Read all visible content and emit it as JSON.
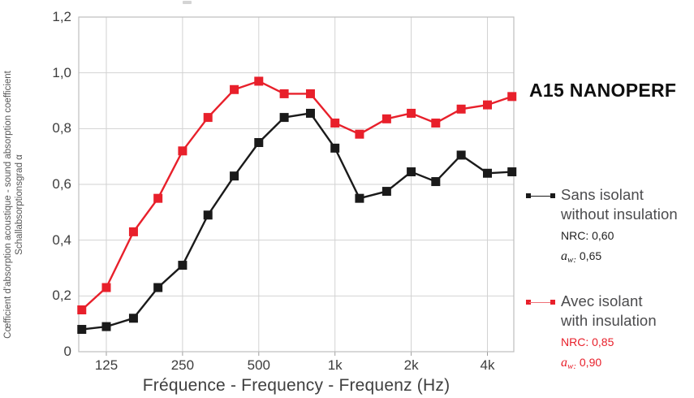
{
  "header": {
    "product_title": "A15 NANOPERF"
  },
  "colors": {
    "series_without_insulation": "#1a1a1a",
    "series_with_insulation": "#e8202b",
    "grid": "#d2d2d2",
    "frame": "#bdbdbd",
    "tick": "#9e9e9e",
    "axis_text": "#3d3d3d"
  },
  "axes": {
    "x_title": "Fréquence - Frequency - Frequenz (Hz)",
    "y_title_line1": "Cœfficient d'absorption acoustique - sound absorption coefficient",
    "y_title_line2": "Schallabsorptionsgrad α"
  },
  "legend": {
    "entries": [
      {
        "label_line1": "Sans isolant",
        "label_line2": "without insulation",
        "nrc": "NRC: 0,60",
        "aw_base": "a",
        "aw_sub": "w:",
        "aw_value": "0,65",
        "color": "#1a1a1a"
      },
      {
        "label_line1": "Avec isolant",
        "label_line2": "with insulation",
        "nrc": "NRC: 0,85",
        "aw_base": "a",
        "aw_sub": "w:",
        "aw_value": "0,90",
        "color": "#e8202b"
      }
    ]
  },
  "chart_data": {
    "type": "line",
    "x_scale": "log",
    "x": [
      100,
      125,
      160,
      200,
      250,
      315,
      400,
      500,
      630,
      800,
      1000,
      1250,
      1600,
      2000,
      2500,
      3150,
      4000,
      5000
    ],
    "series": [
      {
        "name": "Sans isolant - without insulation",
        "color": "#1a1a1a",
        "values": [
          0.08,
          0.09,
          0.12,
          0.23,
          0.31,
          0.49,
          0.63,
          0.75,
          0.84,
          0.855,
          0.73,
          0.55,
          0.575,
          0.645,
          0.61,
          0.705,
          0.64,
          0.645
        ]
      },
      {
        "name": "Avec isolant - with insulation",
        "color": "#e8202b",
        "values": [
          0.15,
          0.23,
          0.43,
          0.55,
          0.72,
          0.84,
          0.94,
          0.97,
          0.925,
          0.925,
          0.82,
          0.78,
          0.835,
          0.855,
          0.82,
          0.87,
          0.885,
          0.915
        ]
      }
    ],
    "xlabel": "Fréquence - Frequency - Frequenz (Hz)",
    "ylabel": "Cœfficient d'absorption acoustique - sound absorption coefficient / Schallabsorptionsgrad α",
    "ylim": [
      0,
      1.2
    ],
    "grid": true,
    "legend_position": "right",
    "x_tick_values": [
      125,
      250,
      500,
      1000,
      2000,
      4000
    ],
    "x_tick_labels": [
      "125",
      "250",
      "500",
      "1k",
      "2k",
      "4k"
    ],
    "y_tick_values": [
      0,
      0.2,
      0.4,
      0.6,
      0.8,
      1.0,
      1.2
    ],
    "y_tick_labels": [
      "0",
      "0,2",
      "0,4",
      "0,6",
      "0,8",
      "1,0",
      "1,2"
    ]
  }
}
